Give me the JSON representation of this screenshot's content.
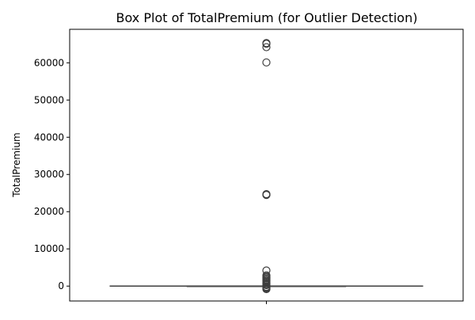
{
  "chart_data": {
    "type": "box",
    "title": "Box Plot of TotalPremium (for Outlier Detection)",
    "ylabel": "TotalPremium",
    "xlabel": "",
    "ylim": [
      -4000,
      69000
    ],
    "yticks": [
      0,
      10000,
      20000,
      30000,
      40000,
      50000,
      60000
    ],
    "ytick_labels": [
      "0",
      "10000",
      "20000",
      "30000",
      "40000",
      "50000",
      "60000"
    ],
    "box": {
      "whisker_low": 0,
      "q1": 0,
      "median": 0,
      "q3": 2,
      "whisker_high": 5
    },
    "outliers": [
      65300,
      65100,
      64200,
      60100,
      24700,
      24600,
      24500,
      4200,
      2900,
      2600,
      2300,
      2000,
      1700,
      1400,
      1100,
      800,
      500,
      250,
      -200,
      -400,
      -600,
      -800
    ],
    "grid": false,
    "colors": {
      "box_line": "#4c4c4c",
      "outlier_edge": "#3d3d3d",
      "axes": "#000000"
    }
  }
}
